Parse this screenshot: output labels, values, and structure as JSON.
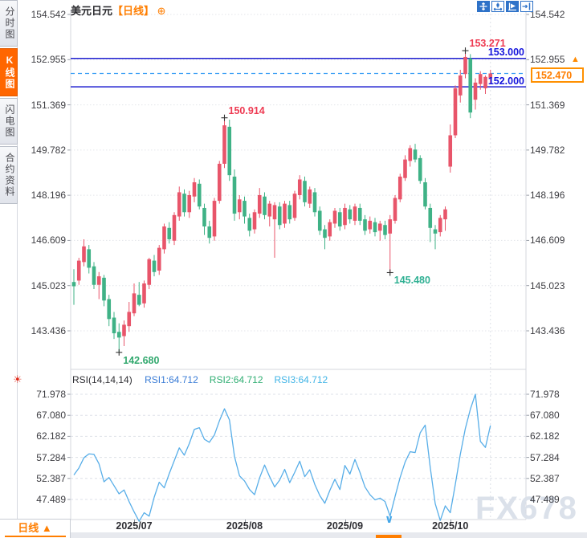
{
  "sidebar": {
    "tabs": [
      {
        "label": "分时图",
        "active": false
      },
      {
        "label": "K线图",
        "active": true
      },
      {
        "label": "闪电图",
        "active": false
      },
      {
        "label": "合约资料",
        "active": false
      }
    ]
  },
  "header": {
    "symbol": "美元日元",
    "period_tag": "【日线】",
    "add_icon": "⊕"
  },
  "toolbar": {
    "icons": [
      "move-tool-icon",
      "axis-scale-icon",
      "chart-style-icon",
      "goto-latest-icon"
    ]
  },
  "rsi_header": {
    "title": "RSI(14,14,14)",
    "series": [
      {
        "text": "RSI1:64.712",
        "color": "#3a7cd6"
      },
      {
        "text": "RSI2:64.712",
        "color": "#2fae72"
      },
      {
        "text": "RSI3:64.712",
        "color": "#41b4e6"
      }
    ],
    "settings_icon": "☀"
  },
  "bottom_bar": {
    "period_label": "日线 ▲",
    "chevron": "∨"
  },
  "watermark": "FX678",
  "colors": {
    "up": "#e8556a",
    "down": "#3fb286",
    "hline": "#1f1fd0",
    "dashed": "#3a9ef5",
    "accent": "#ff7e00",
    "red_label": "#ee3a52",
    "green_label": "#33a96f",
    "teal_label": "#2fb093",
    "rsi_line": "#58aee8",
    "grid": "#e3e5ea",
    "rsi_grid": "#dde0e8",
    "border": "#d4d7de",
    "marker": "#333333"
  },
  "chart_data": {
    "type": "candlestick+line",
    "title": "美元日元 日线 (USD/JPY daily with RSI)",
    "main": {
      "y_axis_labels": [
        "154.542",
        "152.955",
        "151.369",
        "149.782",
        "148.196",
        "146.609",
        "145.023",
        "143.436"
      ],
      "x_labels": [
        {
          "label": "2025/07",
          "index": 12
        },
        {
          "label": "2025/08",
          "index": 34
        },
        {
          "label": "2025/09",
          "index": 54
        },
        {
          "label": "2025/10",
          "index": 75
        }
      ],
      "hlines": [
        {
          "label": "153.000",
          "price": 153.0
        },
        {
          "label": "152.000",
          "price": 152.0
        }
      ],
      "current_price": {
        "label": "152.470",
        "price": 152.47
      },
      "annotations": [
        {
          "text": "153.271",
          "price": 153.271,
          "index": 78,
          "color_key": "red_label",
          "placement": "above"
        },
        {
          "text": "150.914",
          "price": 150.914,
          "index": 30,
          "color_key": "red_label",
          "placement": "above"
        },
        {
          "text": "145.480",
          "price": 145.48,
          "index": 63,
          "color_key": "teal_label",
          "placement": "below"
        },
        {
          "text": "142.680",
          "price": 142.68,
          "index": 9,
          "color_key": "green_label",
          "placement": "below"
        }
      ],
      "candles": [
        [
          145.15,
          145.6,
          144.35,
          145.0
        ],
        [
          145.2,
          146.0,
          145.05,
          145.9
        ],
        [
          145.85,
          146.65,
          145.7,
          146.4
        ],
        [
          146.3,
          146.45,
          145.45,
          145.65
        ],
        [
          145.7,
          145.85,
          144.9,
          145.05
        ],
        [
          145.05,
          145.5,
          144.55,
          145.35
        ],
        [
          145.3,
          145.4,
          144.3,
          144.5
        ],
        [
          144.55,
          144.7,
          143.6,
          143.85
        ],
        [
          143.9,
          144.1,
          143.15,
          143.35
        ],
        [
          143.4,
          143.7,
          142.68,
          143.2
        ],
        [
          143.25,
          143.8,
          142.9,
          143.65
        ],
        [
          143.6,
          144.45,
          143.4,
          144.1
        ],
        [
          144.05,
          145.1,
          143.95,
          144.75
        ],
        [
          144.7,
          145.15,
          144.3,
          144.35
        ],
        [
          144.4,
          145.2,
          144.25,
          145.1
        ],
        [
          145.05,
          146.0,
          144.9,
          145.95
        ],
        [
          145.9,
          146.1,
          145.35,
          145.5
        ],
        [
          145.55,
          146.45,
          145.4,
          146.35
        ],
        [
          146.3,
          147.2,
          146.15,
          147.1
        ],
        [
          147.05,
          147.25,
          146.5,
          146.65
        ],
        [
          146.6,
          147.6,
          146.45,
          147.5
        ],
        [
          147.45,
          148.5,
          147.3,
          148.3
        ],
        [
          148.25,
          148.4,
          147.45,
          147.6
        ],
        [
          147.6,
          148.35,
          147.4,
          148.2
        ],
        [
          148.15,
          148.8,
          147.95,
          148.65
        ],
        [
          148.6,
          148.75,
          147.7,
          147.8
        ],
        [
          147.75,
          147.9,
          146.8,
          147.1
        ],
        [
          147.1,
          147.3,
          146.5,
          146.7
        ],
        [
          146.75,
          148.1,
          146.6,
          148.0
        ],
        [
          148.0,
          149.4,
          147.9,
          149.3
        ],
        [
          149.3,
          150.914,
          149.15,
          150.65
        ],
        [
          150.6,
          150.85,
          148.7,
          148.9
        ],
        [
          148.85,
          149.1,
          147.3,
          147.55
        ],
        [
          147.6,
          148.2,
          147.35,
          148.05
        ],
        [
          148.0,
          148.15,
          147.2,
          147.45
        ],
        [
          147.4,
          147.55,
          146.75,
          146.95
        ],
        [
          147.0,
          147.7,
          146.85,
          147.6
        ],
        [
          147.55,
          148.45,
          147.4,
          148.2
        ],
        [
          148.15,
          148.3,
          147.35,
          147.5
        ],
        [
          147.45,
          148.0,
          147.1,
          147.9
        ],
        [
          147.35,
          147.95,
          146.0,
          147.85
        ],
        [
          147.8,
          147.95,
          147.0,
          147.15
        ],
        [
          147.2,
          148.0,
          147.05,
          147.9
        ],
        [
          147.85,
          148.0,
          147.2,
          147.35
        ],
        [
          147.4,
          148.35,
          147.3,
          148.25
        ],
        [
          148.2,
          148.9,
          148.05,
          148.75
        ],
        [
          148.7,
          148.85,
          147.8,
          147.95
        ],
        [
          147.9,
          148.5,
          147.75,
          148.4
        ],
        [
          148.3,
          148.45,
          147.45,
          147.6
        ],
        [
          147.65,
          147.8,
          146.8,
          146.95
        ],
        [
          147.0,
          147.15,
          146.3,
          146.7
        ],
        [
          146.75,
          147.35,
          146.6,
          147.25
        ],
        [
          147.2,
          147.75,
          147.05,
          147.65
        ],
        [
          147.6,
          147.75,
          146.95,
          147.1
        ],
        [
          147.15,
          147.9,
          147.0,
          147.75
        ],
        [
          147.7,
          147.85,
          147.2,
          147.35
        ],
        [
          147.3,
          147.9,
          147.15,
          147.8
        ],
        [
          147.75,
          147.9,
          147.15,
          147.3
        ],
        [
          147.35,
          147.5,
          146.8,
          146.95
        ],
        [
          147.0,
          147.45,
          146.85,
          147.3
        ],
        [
          147.25,
          147.4,
          146.75,
          146.9
        ],
        [
          146.95,
          147.3,
          146.6,
          147.2
        ],
        [
          147.15,
          147.3,
          146.65,
          146.8
        ],
        [
          146.85,
          147.5,
          145.48,
          147.35
        ],
        [
          147.3,
          148.2,
          147.2,
          148.1
        ],
        [
          148.05,
          148.95,
          147.95,
          148.85
        ],
        [
          148.8,
          149.6,
          148.7,
          149.45
        ],
        [
          149.4,
          149.95,
          149.2,
          149.85
        ],
        [
          149.8,
          150.0,
          149.35,
          149.45
        ],
        [
          149.5,
          149.6,
          148.6,
          148.7
        ],
        [
          148.65,
          148.8,
          147.7,
          147.8
        ],
        [
          147.75,
          147.9,
          146.55,
          147.05
        ],
        [
          147.0,
          147.15,
          146.3,
          146.85
        ],
        [
          146.9,
          147.5,
          146.75,
          147.4
        ],
        [
          147.35,
          147.8,
          146.95,
          147.7
        ],
        [
          149.2,
          150.68,
          148.99,
          150.3
        ],
        [
          150.3,
          152.05,
          150.2,
          151.95
        ],
        [
          151.7,
          152.6,
          151.45,
          152.4
        ],
        [
          152.45,
          153.271,
          152.3,
          153.05
        ],
        [
          153.0,
          153.15,
          150.9,
          151.1
        ],
        [
          151.55,
          152.3,
          151.2,
          152.15
        ],
        [
          152.1,
          152.55,
          151.9,
          152.45
        ],
        [
          151.95,
          152.4,
          151.75,
          152.35
        ],
        [
          152.3,
          152.6,
          152.1,
          152.47
        ]
      ]
    },
    "rsi": {
      "y_axis_labels": [
        "71.978",
        "67.080",
        "62.182",
        "57.284",
        "52.387",
        "47.489"
      ],
      "values": [
        53.2,
        54.8,
        57.2,
        58.1,
        58.0,
        55.8,
        51.6,
        52.6,
        50.7,
        48.8,
        49.7,
        47.0,
        44.6,
        42.4,
        44.4,
        43.6,
        48.0,
        51.5,
        50.2,
        53.5,
        56.5,
        59.5,
        57.8,
        60.5,
        63.8,
        64.2,
        61.5,
        60.8,
        62.5,
        65.8,
        68.6,
        66.0,
        57.5,
        53.0,
        51.8,
        49.8,
        48.6,
        52.5,
        55.5,
        52.8,
        50.4,
        52.0,
        54.5,
        51.4,
        53.8,
        56.4,
        52.8,
        54.4,
        51.0,
        48.4,
        46.6,
        49.6,
        52.2,
        49.8,
        55.4,
        53.4,
        56.8,
        53.8,
        50.4,
        48.6,
        47.4,
        47.8,
        47.0,
        43.6,
        48.2,
        52.6,
        56.2,
        58.6,
        58.4,
        63.0,
        64.8,
        55.0,
        46.5,
        42.6,
        46.0,
        44.4,
        51.0,
        58.0,
        64.0,
        68.5,
        71.978,
        61.0,
        59.6,
        64.712
      ]
    }
  }
}
